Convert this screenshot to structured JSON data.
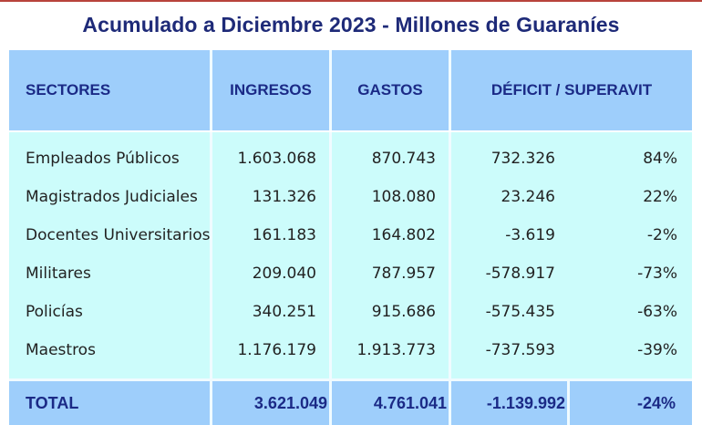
{
  "title": "Acumulado a Diciembre 2023 - Millones de Guaraníes",
  "headers": {
    "sectores": "SECTORES",
    "ingresos": "INGRESOS",
    "gastos": "GASTOS",
    "deficit": "DÉFICIT / SUPERAVIT"
  },
  "rows": [
    {
      "sector": "Empleados Públicos",
      "ingresos": "1.603.068",
      "gastos": "870.743",
      "deficit": "732.326",
      "pct": "84%"
    },
    {
      "sector": "Magistrados Judiciales",
      "ingresos": "131.326",
      "gastos": "108.080",
      "deficit": "23.246",
      "pct": "22%"
    },
    {
      "sector": "Docentes Universitarios",
      "ingresos": "161.183",
      "gastos": "164.802",
      "deficit": "-3.619",
      "pct": "-2%"
    },
    {
      "sector": "Militares",
      "ingresos": "209.040",
      "gastos": "787.957",
      "deficit": "-578.917",
      "pct": "-73%"
    },
    {
      "sector": "Policías",
      "ingresos": "340.251",
      "gastos": "915.686",
      "deficit": "-575.435",
      "pct": "-63%"
    },
    {
      "sector": "Maestros",
      "ingresos": "1.176.179",
      "gastos": "1.913.773",
      "deficit": "-737.593",
      "pct": "-39%"
    }
  ],
  "total": {
    "label": "TOTAL",
    "ingresos": "3.621.049",
    "gastos": "4.761.041",
    "deficit": "-1.139.992",
    "pct": "-24%"
  }
}
